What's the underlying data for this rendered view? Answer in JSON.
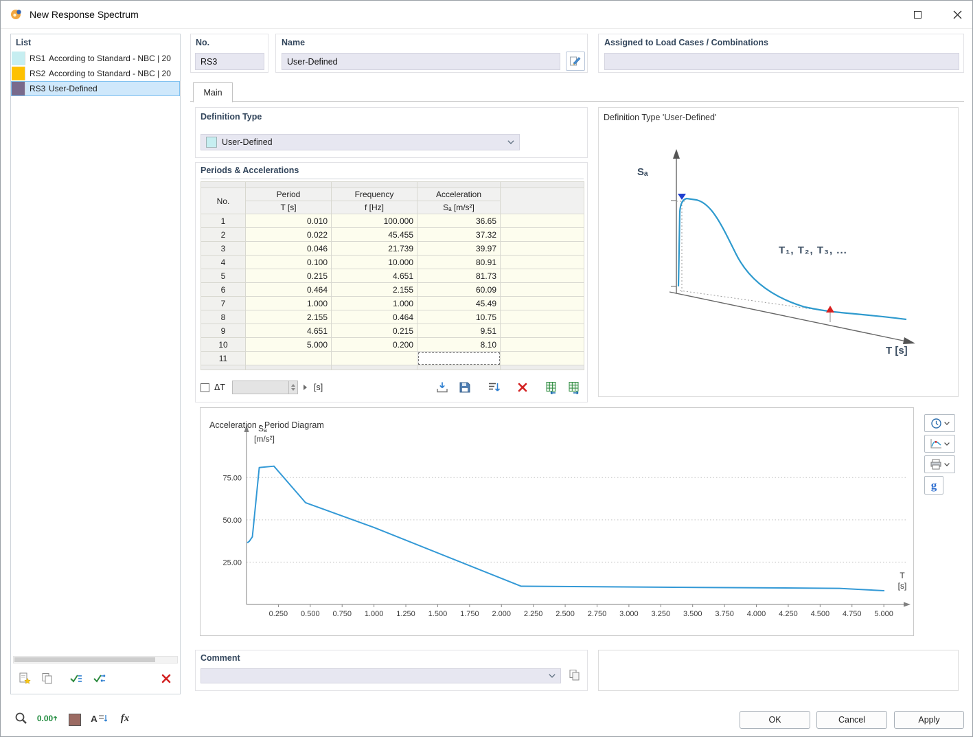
{
  "window": {
    "title": "New Response Spectrum"
  },
  "list_panel": {
    "header": "List",
    "items": [
      {
        "no": "RS1",
        "label": "According to Standard - NBC | 20",
        "color": "#c6eef1",
        "selected": false
      },
      {
        "no": "RS2",
        "label": "According to Standard - NBC | 20",
        "color": "#fec100",
        "selected": false
      },
      {
        "no": "RS3",
        "label": "User-Defined",
        "color": "#796a8c",
        "selected": true
      }
    ]
  },
  "header_fields": {
    "no_label": "No.",
    "no_value": "RS3",
    "name_label": "Name",
    "name_value": "User-Defined",
    "assigned_label": "Assigned to Load Cases / Combinations",
    "assigned_value": ""
  },
  "tab_main": "Main",
  "definition_type": {
    "label": "Definition Type",
    "value": "User-Defined",
    "swatch_color": "#c6eef1"
  },
  "schematic": {
    "title": "Definition Type 'User-Defined'",
    "y_axis_label": "Sₐ",
    "x_axis_label": "T [s]",
    "annotation": "T₁, T₂, T₃, ..."
  },
  "periods": {
    "label": "Periods & Accelerations",
    "columns": {
      "no": "No.",
      "period": "Period",
      "period_unit": "T [s]",
      "frequency": "Frequency",
      "frequency_unit": "f [Hz]",
      "acceleration": "Acceleration",
      "acceleration_unit": "Sₐ [m/s²]"
    },
    "rows": [
      {
        "no": "1",
        "period": "0.010",
        "frequency": "100.000",
        "acceleration": "36.65"
      },
      {
        "no": "2",
        "period": "0.022",
        "frequency": "45.455",
        "acceleration": "37.32"
      },
      {
        "no": "3",
        "period": "0.046",
        "frequency": "21.739",
        "acceleration": "39.97"
      },
      {
        "no": "4",
        "period": "0.100",
        "frequency": "10.000",
        "acceleration": "80.91"
      },
      {
        "no": "5",
        "period": "0.215",
        "frequency": "4.651",
        "acceleration": "81.73"
      },
      {
        "no": "6",
        "period": "0.464",
        "frequency": "2.155",
        "acceleration": "60.09"
      },
      {
        "no": "7",
        "period": "1.000",
        "frequency": "1.000",
        "acceleration": "45.49"
      },
      {
        "no": "8",
        "period": "2.155",
        "frequency": "0.464",
        "acceleration": "10.75"
      },
      {
        "no": "9",
        "period": "4.651",
        "frequency": "0.215",
        "acceleration": "9.51"
      },
      {
        "no": "10",
        "period": "5.000",
        "frequency": "0.200",
        "acceleration": "8.10"
      },
      {
        "no": "11",
        "period": "",
        "frequency": "",
        "acceleration": ""
      }
    ],
    "delta_t_label": "ΔT",
    "delta_t_value": "",
    "unit": "[s]"
  },
  "chart_data": {
    "type": "line",
    "title": "Acceleration - Period Diagram",
    "ylabel": "Sₐ",
    "ylabel_unit": "[m/s²]",
    "xlabel": "T",
    "xlabel_unit": "[s]",
    "x": [
      0.01,
      0.022,
      0.046,
      0.1,
      0.215,
      0.464,
      1.0,
      2.155,
      4.651,
      5.0
    ],
    "y": [
      36.65,
      37.32,
      39.97,
      80.91,
      81.73,
      60.09,
      45.49,
      10.75,
      9.51,
      8.1
    ],
    "x_ticks": [
      "0.250",
      "0.500",
      "0.750",
      "1.000",
      "1.250",
      "1.500",
      "1.750",
      "2.000",
      "2.250",
      "2.500",
      "2.750",
      "3.000",
      "3.250",
      "3.500",
      "3.750",
      "4.000",
      "4.250",
      "4.500",
      "4.750",
      "5.000"
    ],
    "y_ticks": [
      "25.00",
      "50.00",
      "75.00"
    ],
    "xlim": [
      0,
      5.08
    ],
    "ylim": [
      0,
      95
    ],
    "grid": "dotted-horizontal",
    "legend": "none",
    "line_color": "#3399d6"
  },
  "side_buttons": {
    "g_label": "g"
  },
  "comment": {
    "label": "Comment",
    "value": ""
  },
  "bottom_toolbar": {
    "zero_label": "0.00",
    "sort_label": "A",
    "fx_label": "fx"
  },
  "footer": {
    "ok": "OK",
    "cancel": "Cancel",
    "apply": "Apply"
  }
}
